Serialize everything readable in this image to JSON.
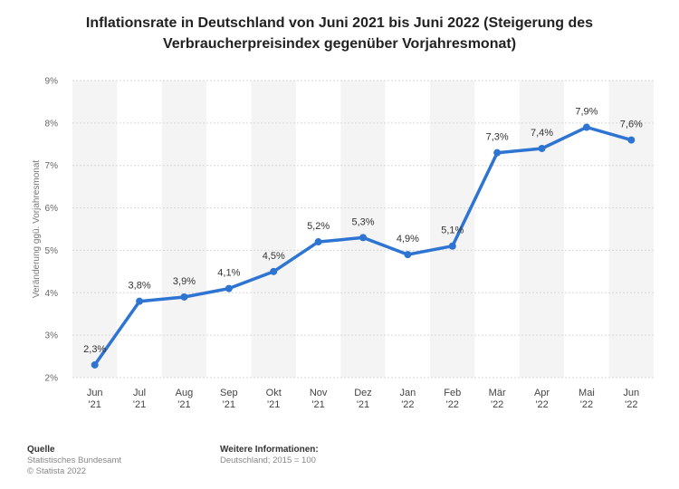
{
  "title": {
    "line1": "Inflationsrate in Deutschland von Juni 2021 bis Juni 2022 (Steigerung des",
    "line2": "Verbraucherpreisindex gegenüber Vorjahresmonat)"
  },
  "chart_data": {
    "type": "line",
    "ylabel": "Veränderung ggü. Vorjahresmonat",
    "ylim": [
      2,
      9
    ],
    "yticks": [
      "2%",
      "3%",
      "4%",
      "5%",
      "6%",
      "7%",
      "8%",
      "9%"
    ],
    "categories": [
      [
        "Jun",
        "'21"
      ],
      [
        "Jul",
        "'21"
      ],
      [
        "Aug",
        "'21"
      ],
      [
        "Sep",
        "'21"
      ],
      [
        "Okt",
        "'21"
      ],
      [
        "Nov",
        "'21"
      ],
      [
        "Dez",
        "'21"
      ],
      [
        "Jan",
        "'22"
      ],
      [
        "Feb",
        "'22"
      ],
      [
        "Mär",
        "'22"
      ],
      [
        "Apr",
        "'22"
      ],
      [
        "Mai",
        "'22"
      ],
      [
        "Jun",
        "'22"
      ]
    ],
    "values": [
      2.3,
      3.8,
      3.9,
      4.1,
      4.5,
      5.2,
      5.3,
      4.9,
      5.1,
      7.3,
      7.4,
      7.9,
      7.6
    ],
    "data_labels": [
      "2,3%",
      "3,8%",
      "3,9%",
      "4,1%",
      "4,5%",
      "5,2%",
      "5,3%",
      "4,9%",
      "5,1%",
      "7,3%",
      "7,4%",
      "7,9%",
      "7,6%"
    ],
    "line_color": "#2e74d2",
    "grid": true
  },
  "footer": {
    "source_heading": "Quelle",
    "source_line1": "Statistisches Bundesamt",
    "source_line2": "© Statista 2022",
    "info_heading": "Weitere Informationen:",
    "info_line1": "Deutschland; 2015 = 100"
  }
}
